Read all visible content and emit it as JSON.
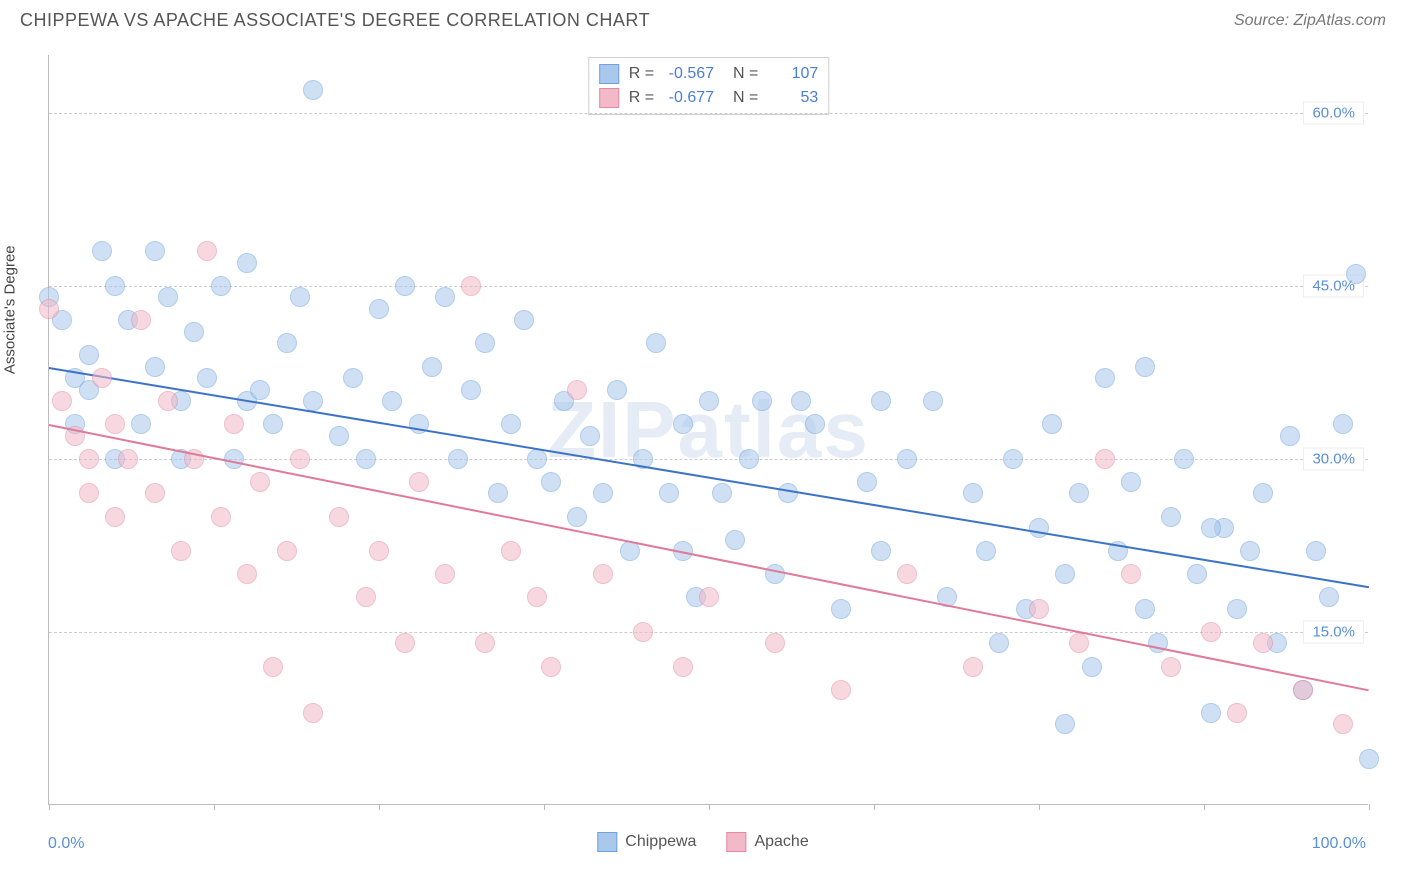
{
  "header": {
    "title": "CHIPPEWA VS APACHE ASSOCIATE'S DEGREE CORRELATION CHART",
    "source": "Source: ZipAtlas.com"
  },
  "watermark": "ZIPatlas",
  "chart": {
    "type": "scatter",
    "ylabel": "Associate's Degree",
    "xlim": [
      0,
      100
    ],
    "ylim": [
      0,
      65
    ],
    "xlabel_min": "0.0%",
    "xlabel_max": "100.0%",
    "yticks": [
      {
        "v": 15,
        "label": "15.0%"
      },
      {
        "v": 30,
        "label": "30.0%"
      },
      {
        "v": 45,
        "label": "45.0%"
      },
      {
        "v": 60,
        "label": "60.0%"
      }
    ],
    "xtick_positions": [
      0,
      12.5,
      25,
      37.5,
      50,
      62.5,
      75,
      87.5,
      100
    ],
    "grid_color": "#cccccc",
    "background_color": "#ffffff",
    "point_radius": 10,
    "point_opacity": 0.55,
    "series": [
      {
        "name": "Chippewa",
        "fill": "#a9c8ec",
        "stroke": "#6fa3dd",
        "trend_color": "#3d73c6",
        "trend": {
          "x1": 0,
          "y1": 38,
          "x2": 100,
          "y2": 19
        },
        "stats": {
          "R": "-0.567",
          "N": "107"
        },
        "points": [
          [
            0,
            44
          ],
          [
            1,
            42
          ],
          [
            2,
            37
          ],
          [
            2,
            33
          ],
          [
            3,
            39
          ],
          [
            3,
            36
          ],
          [
            4,
            48
          ],
          [
            5,
            30
          ],
          [
            5,
            45
          ],
          [
            6,
            42
          ],
          [
            7,
            33
          ],
          [
            8,
            48
          ],
          [
            8,
            38
          ],
          [
            9,
            44
          ],
          [
            10,
            30
          ],
          [
            10,
            35
          ],
          [
            11,
            41
          ],
          [
            12,
            37
          ],
          [
            13,
            45
          ],
          [
            14,
            30
          ],
          [
            15,
            35
          ],
          [
            15,
            47
          ],
          [
            16,
            36
          ],
          [
            17,
            33
          ],
          [
            18,
            40
          ],
          [
            19,
            44
          ],
          [
            20,
            62
          ],
          [
            20,
            35
          ],
          [
            22,
            32
          ],
          [
            23,
            37
          ],
          [
            24,
            30
          ],
          [
            25,
            43
          ],
          [
            26,
            35
          ],
          [
            27,
            45
          ],
          [
            28,
            33
          ],
          [
            29,
            38
          ],
          [
            30,
            44
          ],
          [
            31,
            30
          ],
          [
            32,
            36
          ],
          [
            33,
            40
          ],
          [
            34,
            27
          ],
          [
            35,
            33
          ],
          [
            36,
            42
          ],
          [
            37,
            30
          ],
          [
            38,
            28
          ],
          [
            39,
            35
          ],
          [
            40,
            25
          ],
          [
            41,
            32
          ],
          [
            42,
            27
          ],
          [
            43,
            36
          ],
          [
            44,
            22
          ],
          [
            45,
            30
          ],
          [
            46,
            40
          ],
          [
            47,
            27
          ],
          [
            48,
            33
          ],
          [
            49,
            18
          ],
          [
            50,
            35
          ],
          [
            51,
            27
          ],
          [
            52,
            23
          ],
          [
            53,
            30
          ],
          [
            54,
            35
          ],
          [
            55,
            20
          ],
          [
            56,
            27
          ],
          [
            58,
            33
          ],
          [
            60,
            17
          ],
          [
            62,
            28
          ],
          [
            63,
            22
          ],
          [
            65,
            30
          ],
          [
            67,
            35
          ],
          [
            68,
            18
          ],
          [
            70,
            27
          ],
          [
            71,
            22
          ],
          [
            72,
            14
          ],
          [
            73,
            30
          ],
          [
            74,
            17
          ],
          [
            75,
            24
          ],
          [
            76,
            33
          ],
          [
            77,
            20
          ],
          [
            78,
            27
          ],
          [
            79,
            12
          ],
          [
            80,
            37
          ],
          [
            81,
            22
          ],
          [
            82,
            28
          ],
          [
            83,
            17
          ],
          [
            84,
            14
          ],
          [
            85,
            25
          ],
          [
            86,
            30
          ],
          [
            87,
            20
          ],
          [
            88,
            8
          ],
          [
            89,
            24
          ],
          [
            90,
            17
          ],
          [
            91,
            22
          ],
          [
            92,
            27
          ],
          [
            93,
            14
          ],
          [
            94,
            32
          ],
          [
            95,
            10
          ],
          [
            96,
            22
          ],
          [
            97,
            18
          ],
          [
            98,
            33
          ],
          [
            99,
            46
          ],
          [
            83,
            38
          ],
          [
            88,
            24
          ],
          [
            57,
            35
          ],
          [
            63,
            35
          ],
          [
            48,
            22
          ],
          [
            77,
            7
          ],
          [
            100,
            4
          ]
        ]
      },
      {
        "name": "Apache",
        "fill": "#f2b9c8",
        "stroke": "#e58aa4",
        "trend_color": "#e07a98",
        "trend": {
          "x1": 0,
          "y1": 33,
          "x2": 100,
          "y2": 10
        },
        "stats": {
          "R": "-0.677",
          "N": "53"
        },
        "points": [
          [
            0,
            43
          ],
          [
            1,
            35
          ],
          [
            2,
            32
          ],
          [
            3,
            30
          ],
          [
            3,
            27
          ],
          [
            4,
            37
          ],
          [
            5,
            25
          ],
          [
            5,
            33
          ],
          [
            6,
            30
          ],
          [
            7,
            42
          ],
          [
            8,
            27
          ],
          [
            9,
            35
          ],
          [
            10,
            22
          ],
          [
            11,
            30
          ],
          [
            12,
            48
          ],
          [
            13,
            25
          ],
          [
            14,
            33
          ],
          [
            15,
            20
          ],
          [
            16,
            28
          ],
          [
            17,
            12
          ],
          [
            18,
            22
          ],
          [
            19,
            30
          ],
          [
            20,
            8
          ],
          [
            22,
            25
          ],
          [
            24,
            18
          ],
          [
            25,
            22
          ],
          [
            27,
            14
          ],
          [
            28,
            28
          ],
          [
            30,
            20
          ],
          [
            32,
            45
          ],
          [
            33,
            14
          ],
          [
            35,
            22
          ],
          [
            37,
            18
          ],
          [
            38,
            12
          ],
          [
            40,
            36
          ],
          [
            42,
            20
          ],
          [
            45,
            15
          ],
          [
            48,
            12
          ],
          [
            50,
            18
          ],
          [
            55,
            14
          ],
          [
            60,
            10
          ],
          [
            65,
            20
          ],
          [
            70,
            12
          ],
          [
            75,
            17
          ],
          [
            78,
            14
          ],
          [
            80,
            30
          ],
          [
            82,
            20
          ],
          [
            85,
            12
          ],
          [
            88,
            15
          ],
          [
            90,
            8
          ],
          [
            92,
            14
          ],
          [
            95,
            10
          ],
          [
            98,
            7
          ]
        ]
      }
    ]
  },
  "legend": {
    "items": [
      {
        "label": "Chippewa",
        "fill": "#a9c8ec",
        "stroke": "#6fa3dd"
      },
      {
        "label": "Apache",
        "fill": "#f2b9c8",
        "stroke": "#e58aa4"
      }
    ]
  }
}
